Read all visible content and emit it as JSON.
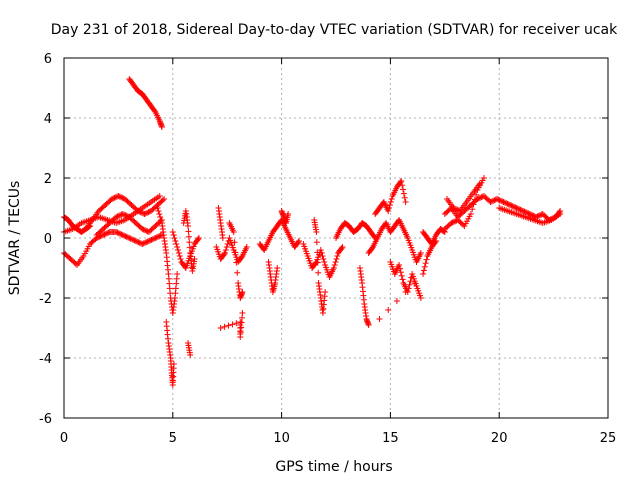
{
  "chart_data": {
    "type": "scatter",
    "title": "Day 231 of 2018, Sidereal Day-to-day VTEC variation (SDTVAR) for receiver ucak",
    "xlabel": "GPS time / hours",
    "ylabel": "SDTVAR / TECUs",
    "xlim": [
      0,
      25
    ],
    "ylim": [
      -6,
      6
    ],
    "xticks": [
      "0",
      "5",
      "10",
      "15",
      "20",
      "25"
    ],
    "yticks": [
      "-6",
      "-4",
      "-2",
      "0",
      "2",
      "4",
      "6"
    ],
    "grid": true,
    "marker": "plus",
    "series": [
      {
        "name": "SDTVAR",
        "color": "#ff0000",
        "segments": [
          {
            "x": [
              0.0,
              0.2,
              0.4,
              0.6,
              0.8,
              1.0,
              1.2
            ],
            "y": [
              0.7,
              0.6,
              0.4,
              0.3,
              0.2,
              0.3,
              0.4
            ]
          },
          {
            "x": [
              0.0,
              0.3,
              0.6,
              0.9,
              1.2,
              1.5,
              1.8,
              2.1,
              2.4,
              2.7,
              3.0,
              3.3,
              3.6,
              3.9,
              4.2,
              4.5
            ],
            "y": [
              -0.5,
              -0.7,
              -0.9,
              -0.6,
              -0.2,
              0.0,
              0.1,
              0.2,
              0.2,
              0.1,
              0.0,
              -0.1,
              -0.2,
              -0.1,
              0.0,
              0.1
            ]
          },
          {
            "x": [
              0.0,
              0.4,
              0.8,
              1.2,
              1.6,
              2.0,
              2.4,
              2.8,
              3.2,
              3.6,
              4.0,
              4.4
            ],
            "y": [
              0.2,
              0.3,
              0.5,
              0.6,
              0.7,
              0.6,
              0.5,
              0.6,
              0.8,
              1.0,
              1.2,
              1.4
            ]
          },
          {
            "x": [
              1.0,
              1.3,
              1.6,
              1.9,
              2.2,
              2.5,
              2.8,
              3.1,
              3.4,
              3.7,
              4.0,
              4.3,
              4.6
            ],
            "y": [
              0.3,
              0.6,
              0.9,
              1.1,
              1.3,
              1.4,
              1.3,
              1.1,
              0.9,
              0.8,
              0.9,
              1.1,
              1.3
            ]
          },
          {
            "x": [
              1.5,
              1.8,
              2.1,
              2.4,
              2.7,
              3.0,
              3.3,
              3.6,
              3.9,
              4.2,
              4.5
            ],
            "y": [
              0.1,
              0.3,
              0.5,
              0.7,
              0.8,
              0.7,
              0.5,
              0.3,
              0.2,
              0.4,
              0.6
            ]
          },
          {
            "x": [
              3.0,
              3.2,
              3.4,
              3.6,
              3.8,
              4.0,
              4.2,
              4.4,
              4.5
            ],
            "y": [
              5.3,
              5.1,
              4.9,
              4.8,
              4.6,
              4.4,
              4.2,
              3.9,
              3.7
            ]
          },
          {
            "x": [
              4.3,
              4.5,
              4.6,
              4.7,
              4.8,
              4.9,
              5.0,
              5.1,
              5.2
            ],
            "y": [
              1.0,
              0.5,
              0.0,
              -0.5,
              -1.2,
              -2.0,
              -2.5,
              -2.0,
              -1.2
            ]
          },
          {
            "x": [
              4.7,
              4.8,
              4.9,
              4.95,
              5.0,
              5.05
            ],
            "y": [
              -2.8,
              -3.5,
              -4.0,
              -4.5,
              -4.9,
              -4.2
            ]
          },
          {
            "x": [
              5.0,
              5.2,
              5.4,
              5.6,
              5.8,
              6.0,
              6.2
            ],
            "y": [
              0.2,
              -0.3,
              -0.8,
              -1.0,
              -0.6,
              -0.2,
              0.0
            ]
          },
          {
            "x": [
              5.5,
              5.6,
              5.7,
              5.8,
              5.9,
              6.0
            ],
            "y": [
              0.5,
              0.9,
              0.4,
              -0.5,
              -1.1,
              -0.7
            ]
          },
          {
            "x": [
              5.7,
              5.8
            ],
            "y": [
              -3.5,
              -3.9
            ]
          },
          {
            "x": [
              7.0,
              7.2,
              7.4,
              7.6,
              7.8,
              8.0,
              8.2,
              8.4
            ],
            "y": [
              -0.3,
              -0.7,
              -0.5,
              0.0,
              -0.4,
              -0.8,
              -0.6,
              -0.3
            ]
          },
          {
            "x": [
              7.1,
              7.2,
              7.3
            ],
            "y": [
              1.0,
              0.5,
              0.0
            ]
          },
          {
            "x": [
              7.6,
              7.8,
              8.0,
              8.1,
              8.2
            ],
            "y": [
              0.5,
              0.2,
              -1.5,
              -2.0,
              -1.8
            ]
          },
          {
            "x": [
              7.2,
              8.1,
              8.1,
              8.2
            ],
            "y": [
              -3.0,
              -2.8,
              -3.3,
              -2.5
            ]
          },
          {
            "x": [
              9.0,
              9.2,
              9.4,
              9.6,
              9.8,
              10.0,
              10.2,
              10.4,
              10.6,
              10.8
            ],
            "y": [
              -0.2,
              -0.4,
              -0.1,
              0.2,
              0.4,
              0.6,
              0.3,
              0.0,
              -0.3,
              -0.1
            ]
          },
          {
            "x": [
              9.4,
              9.5,
              9.6,
              9.7,
              9.8
            ],
            "y": [
              -0.8,
              -1.3,
              -1.8,
              -1.5,
              -1.0
            ]
          },
          {
            "x": [
              10.0,
              10.1,
              10.2,
              10.3
            ],
            "y": [
              0.9,
              0.7,
              0.5,
              0.8
            ]
          },
          {
            "x": [
              11.0,
              11.2,
              11.4,
              11.6,
              11.8,
              12.0,
              12.2,
              12.4,
              12.6,
              12.8
            ],
            "y": [
              -0.2,
              -0.6,
              -1.0,
              -0.8,
              -0.4,
              -0.9,
              -1.3,
              -1.0,
              -0.5,
              -0.3
            ]
          },
          {
            "x": [
              11.5,
              11.6,
              11.7,
              11.8,
              11.9,
              12.0
            ],
            "y": [
              0.6,
              0.2,
              -1.5,
              -2.0,
              -2.5,
              -1.8
            ]
          },
          {
            "x": [
              12.5,
              12.7,
              12.9,
              13.1,
              13.3,
              13.5,
              13.7,
              13.9,
              14.1,
              14.3
            ],
            "y": [
              0.0,
              0.3,
              0.5,
              0.4,
              0.2,
              0.3,
              0.5,
              0.4,
              0.2,
              0.0
            ]
          },
          {
            "x": [
              13.6,
              13.7,
              13.8,
              13.9,
              14.0
            ],
            "y": [
              -1.0,
              -1.5,
              -2.2,
              -2.7,
              -2.9
            ]
          },
          {
            "x": [
              14.0,
              14.2,
              14.4,
              14.6,
              14.8,
              15.0,
              15.2,
              15.4,
              15.6,
              15.8,
              16.0,
              16.2,
              16.4
            ],
            "y": [
              -0.5,
              -0.3,
              0.0,
              0.3,
              0.5,
              0.2,
              0.4,
              0.6,
              0.3,
              0.0,
              -0.4,
              -0.8,
              -0.5
            ]
          },
          {
            "x": [
              14.3,
              14.5,
              14.7,
              14.9,
              15.1,
              15.3,
              15.5,
              15.7
            ],
            "y": [
              0.8,
              1.0,
              1.2,
              0.9,
              1.4,
              1.7,
              1.9,
              1.2
            ]
          },
          {
            "x": [
              15.0,
              15.2,
              15.4,
              15.6,
              15.8,
              16.0,
              16.2,
              16.4
            ],
            "y": [
              -0.8,
              -1.2,
              -0.9,
              -1.5,
              -1.8,
              -1.2,
              -1.6,
              -2.0
            ]
          },
          {
            "x": [
              14.5,
              16.5,
              16.7,
              16.9,
              17.1
            ],
            "y": [
              -2.7,
              -1.2,
              -0.6,
              -0.3,
              -0.1
            ]
          },
          {
            "x": [
              16.5,
              16.7,
              16.9,
              17.1,
              17.3,
              17.5
            ],
            "y": [
              0.2,
              0.0,
              -0.2,
              0.1,
              0.3,
              0.2
            ]
          },
          {
            "x": [
              17.5,
              17.8,
              18.1,
              18.4,
              18.7,
              19.0,
              19.3,
              19.6,
              19.9,
              20.2,
              20.5,
              20.8,
              21.1,
              21.4,
              21.7,
              22.0,
              22.3,
              22.6,
              22.8
            ],
            "y": [
              0.8,
              1.0,
              0.7,
              0.9,
              1.1,
              1.3,
              1.4,
              1.2,
              1.3,
              1.2,
              1.1,
              1.0,
              0.9,
              0.8,
              0.7,
              0.8,
              0.6,
              0.7,
              0.9
            ]
          },
          {
            "x": [
              17.5,
              17.8,
              18.1,
              18.4,
              18.7,
              19.0,
              19.3
            ],
            "y": [
              0.3,
              0.5,
              0.6,
              0.4,
              0.8,
              1.6,
              2.0
            ]
          },
          {
            "x": [
              17.6,
              17.9,
              18.2,
              18.5,
              18.8,
              19.1
            ],
            "y": [
              1.3,
              1.0,
              0.9,
              1.2,
              1.5,
              1.8
            ]
          },
          {
            "x": [
              20.0,
              20.4,
              20.8,
              21.2,
              21.6,
              22.0,
              22.4,
              22.8
            ],
            "y": [
              1.0,
              0.9,
              0.8,
              0.7,
              0.6,
              0.5,
              0.6,
              0.8
            ]
          }
        ]
      }
    ]
  }
}
